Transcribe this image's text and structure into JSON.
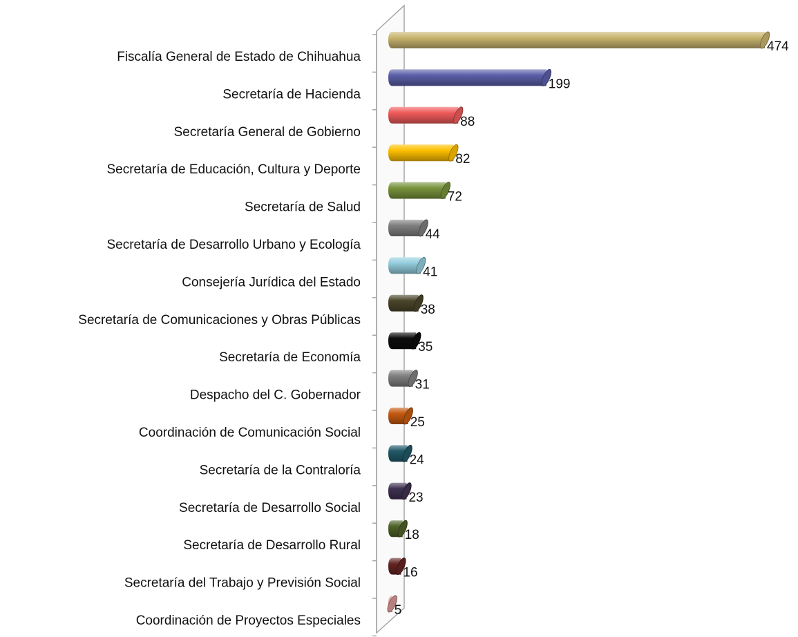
{
  "chart_data": {
    "type": "bar",
    "orientation": "horizontal",
    "categories": [
      "Fiscalía General de Estado de Chihuahua",
      "Secretaría de Hacienda",
      "Secretaría General de Gobierno",
      "Secretaría de Educación, Cultura y Deporte",
      "Secretaría de Salud",
      "Secretaría de Desarrollo Urbano y Ecología",
      "Consejería Jurídica del Estado",
      "Secretaría de Comunicaciones y Obras Públicas",
      "Secretaría de Economía",
      "Despacho del C. Gobernador",
      "Coordinación de Comunicación Social",
      "Secretaría de la Contraloría",
      "Secretaría de Desarrollo Social",
      "Secretaría de Desarrollo Rural",
      "Secretaría del Trabajo y Previsión Social",
      "Coordinación de Proyectos Especiales"
    ],
    "values": [
      474,
      199,
      88,
      82,
      72,
      44,
      41,
      38,
      35,
      31,
      25,
      24,
      23,
      18,
      16,
      5
    ],
    "colors": [
      "#c8b46e",
      "#5b5fa8",
      "#f05a5a",
      "#ffc000",
      "#77933c",
      "#7f7f7f",
      "#93cddd",
      "#4a452a",
      "#0d0d0d",
      "#808080",
      "#c55a11",
      "#215968",
      "#3f3151",
      "#4f6228",
      "#632523",
      "#d99694"
    ]
  }
}
